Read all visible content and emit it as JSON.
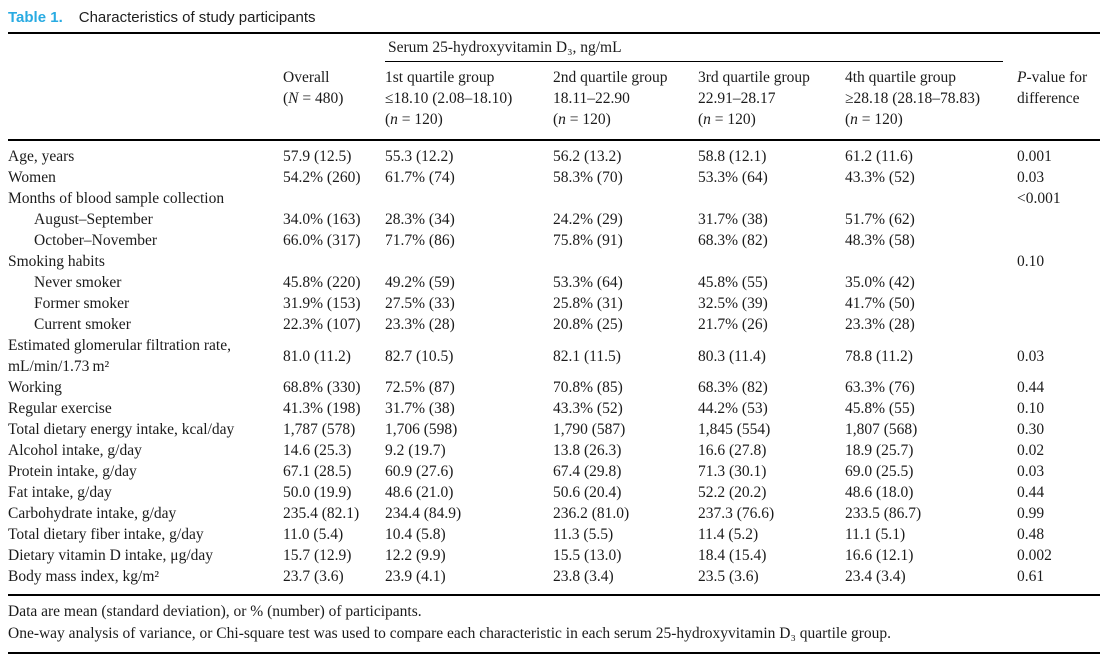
{
  "caption": {
    "label": "Table 1.",
    "text": "Characteristics of study participants"
  },
  "accent_color": "#29abe2",
  "table": {
    "spanner": "Serum 25-hydroxyvitamin D₃, ng/mL",
    "columns": [
      {
        "id": "overall",
        "lines": [
          "Overall",
          "(N = 480)"
        ]
      },
      {
        "id": "quartile-1",
        "lines": [
          "1st quartile group",
          "≤18.10 (2.08–18.10)",
          "(n = 120)"
        ]
      },
      {
        "id": "quartile-2",
        "lines": [
          "2nd quartile group",
          "18.11–22.90",
          "(n = 120)"
        ]
      },
      {
        "id": "quartile-3",
        "lines": [
          "3rd quartile group",
          "22.91–28.17",
          "(n = 120)"
        ]
      },
      {
        "id": "quartile-4",
        "lines": [
          "4th quartile group",
          "≥28.18 (28.18–78.83)",
          "(n = 120)"
        ]
      },
      {
        "id": "pvalue",
        "lines": [
          "P-value for",
          "difference"
        ]
      }
    ],
    "rows": [
      {
        "label": "Age, years",
        "indent": false,
        "values": [
          "57.9 (12.5)",
          "55.3 (12.2)",
          "56.2 (13.2)",
          "58.8 (12.1)",
          "61.2 (11.6)",
          "0.001"
        ]
      },
      {
        "label": "Women",
        "indent": false,
        "values": [
          "54.2% (260)",
          "61.7% (74)",
          "58.3% (70)",
          "53.3% (64)",
          "43.3% (52)",
          "0.03"
        ]
      },
      {
        "label": "Months of blood sample collection",
        "indent": false,
        "values": [
          "",
          "",
          "",
          "",
          "",
          "<0.001"
        ]
      },
      {
        "label": "August–September",
        "indent": true,
        "values": [
          "34.0% (163)",
          "28.3% (34)",
          "24.2% (29)",
          "31.7% (38)",
          "51.7% (62)",
          ""
        ]
      },
      {
        "label": "October–November",
        "indent": true,
        "values": [
          "66.0% (317)",
          "71.7% (86)",
          "75.8% (91)",
          "68.3% (82)",
          "48.3% (58)",
          ""
        ]
      },
      {
        "label": "Smoking habits",
        "indent": false,
        "values": [
          "",
          "",
          "",
          "",
          "",
          "0.10"
        ]
      },
      {
        "label": "Never smoker",
        "indent": true,
        "values": [
          "45.8% (220)",
          "49.2% (59)",
          "53.3% (64)",
          "45.8% (55)",
          "35.0% (42)",
          ""
        ]
      },
      {
        "label": "Former smoker",
        "indent": true,
        "values": [
          "31.9% (153)",
          "27.5% (33)",
          "25.8% (31)",
          "32.5% (39)",
          "41.7% (50)",
          ""
        ]
      },
      {
        "label": "Current smoker",
        "indent": true,
        "values": [
          "22.3% (107)",
          "23.3% (28)",
          "20.8% (25)",
          "21.7% (26)",
          "23.3% (28)",
          ""
        ]
      },
      {
        "label": "Estimated glomerular filtration rate, mL/min/1.73 m²",
        "indent": false,
        "values": [
          "81.0 (11.2)",
          "82.7 (10.5)",
          "82.1 (11.5)",
          "80.3 (11.4)",
          "78.8 (11.2)",
          "0.03"
        ]
      },
      {
        "label": "Working",
        "indent": false,
        "values": [
          "68.8% (330)",
          "72.5% (87)",
          "70.8% (85)",
          "68.3% (82)",
          "63.3% (76)",
          "0.44"
        ]
      },
      {
        "label": "Regular exercise",
        "indent": false,
        "values": [
          "41.3% (198)",
          "31.7% (38)",
          "43.3% (52)",
          "44.2% (53)",
          "45.8% (55)",
          "0.10"
        ]
      },
      {
        "label": "Total dietary energy intake, kcal/day",
        "indent": false,
        "values": [
          "1,787 (578)",
          "1,706 (598)",
          "1,790 (587)",
          "1,845 (554)",
          "1,807 (568)",
          "0.30"
        ]
      },
      {
        "label": "Alcohol intake, g/day",
        "indent": false,
        "values": [
          "14.6 (25.3)",
          "9.2 (19.7)",
          "13.8 (26.3)",
          "16.6 (27.8)",
          "18.9 (25.7)",
          "0.02"
        ]
      },
      {
        "label": "Protein intake, g/day",
        "indent": false,
        "values": [
          "67.1 (28.5)",
          "60.9 (27.6)",
          "67.4 (29.8)",
          "71.3 (30.1)",
          "69.0 (25.5)",
          "0.03"
        ]
      },
      {
        "label": "Fat intake, g/day",
        "indent": false,
        "values": [
          "50.0 (19.9)",
          "48.6 (21.0)",
          "50.6 (20.4)",
          "52.2 (20.2)",
          "48.6 (18.0)",
          "0.44"
        ]
      },
      {
        "label": "Carbohydrate intake, g/day",
        "indent": false,
        "values": [
          "235.4 (82.1)",
          "234.4 (84.9)",
          "236.2 (81.0)",
          "237.3 (76.6)",
          "233.5 (86.7)",
          "0.99"
        ]
      },
      {
        "label": "Total dietary fiber intake, g/day",
        "indent": false,
        "values": [
          "11.0 (5.4)",
          "10.4 (5.8)",
          "11.3 (5.5)",
          "11.4 (5.2)",
          "11.1 (5.1)",
          "0.48"
        ]
      },
      {
        "label": "Dietary vitamin D intake, μg/day",
        "indent": false,
        "values": [
          "15.7 (12.9)",
          "12.2 (9.9)",
          "15.5 (13.0)",
          "18.4 (15.4)",
          "16.6 (12.1)",
          "0.002"
        ]
      },
      {
        "label": "Body mass index, kg/m²",
        "indent": false,
        "values": [
          "23.7 (3.6)",
          "23.9 (4.1)",
          "23.8 (3.4)",
          "23.5 (3.6)",
          "23.4 (3.4)",
          "0.61"
        ]
      }
    ]
  },
  "footnotes": [
    "Data are mean (standard deviation), or % (number) of participants.",
    "One-way analysis of variance, or Chi-square test was used to compare each characteristic in each serum 25-hydroxyvitamin D₃ quartile group."
  ]
}
